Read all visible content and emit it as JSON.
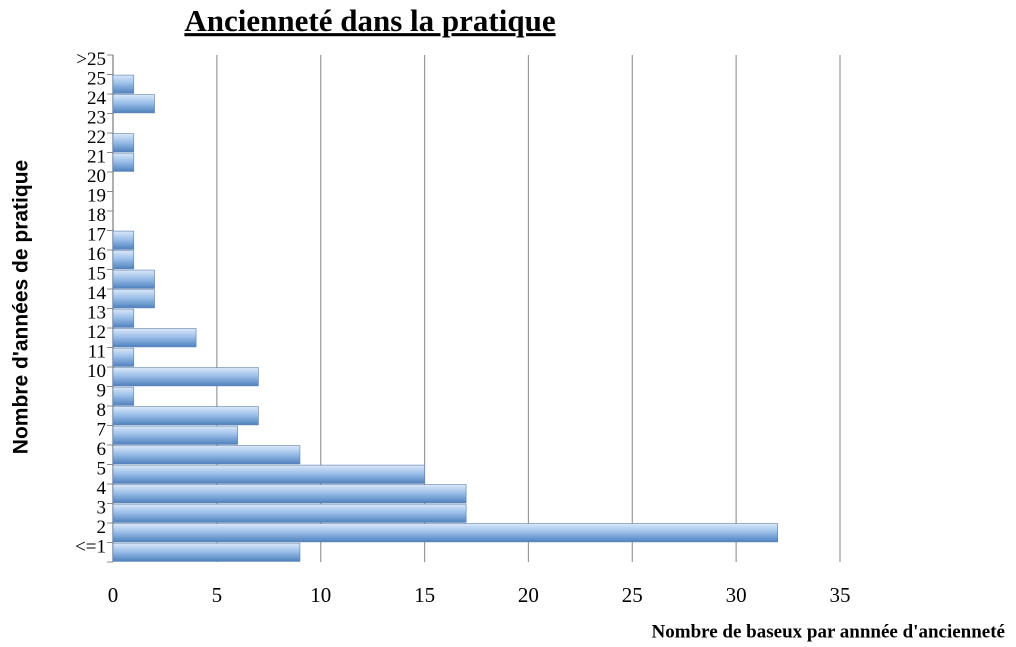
{
  "chart_data": {
    "type": "hbar",
    "title": "Ancienneté dans la pratique",
    "x_label": "Nombre de baseux par annnée d'ancienneté",
    "y_label": "Nombre d'années de pratique",
    "categories": [
      "<=1",
      "2",
      "3",
      "4",
      "5",
      "6",
      "7",
      "8",
      "9",
      "10",
      "11",
      "12",
      "13",
      "14",
      "15",
      "16",
      "17",
      "18",
      "19",
      "20",
      "21",
      "22",
      "23",
      "24",
      "25",
      ">25"
    ],
    "values": [
      9,
      32,
      17,
      17,
      15,
      9,
      6,
      7,
      1,
      7,
      1,
      4,
      1,
      2,
      2,
      1,
      1,
      0,
      0,
      0,
      1,
      1,
      0,
      2,
      1,
      0
    ],
    "color": "#8db4e2",
    "xlim": [
      0,
      35
    ],
    "xticks": [
      0,
      5,
      10,
      15,
      20,
      25,
      30,
      35
    ],
    "grid": true
  }
}
